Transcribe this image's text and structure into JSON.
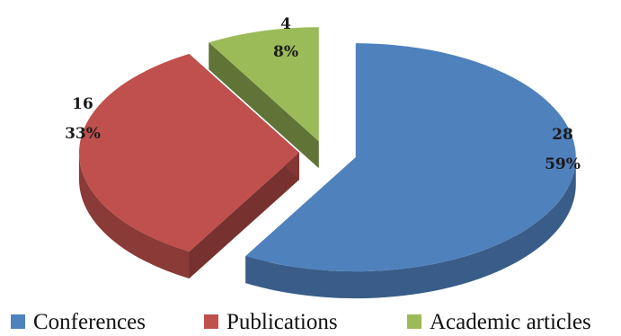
{
  "chart_data": {
    "type": "pie",
    "categories": [
      "Conferences",
      "Publications",
      "Academic articles"
    ],
    "values": [
      28,
      16,
      4
    ],
    "percents": [
      "59%",
      "33%",
      "8%"
    ],
    "colors": [
      "#4f81bd",
      "#c0504d",
      "#9bbb59"
    ],
    "legend_position": "bottom",
    "exploded": true,
    "three_d": true
  }
}
